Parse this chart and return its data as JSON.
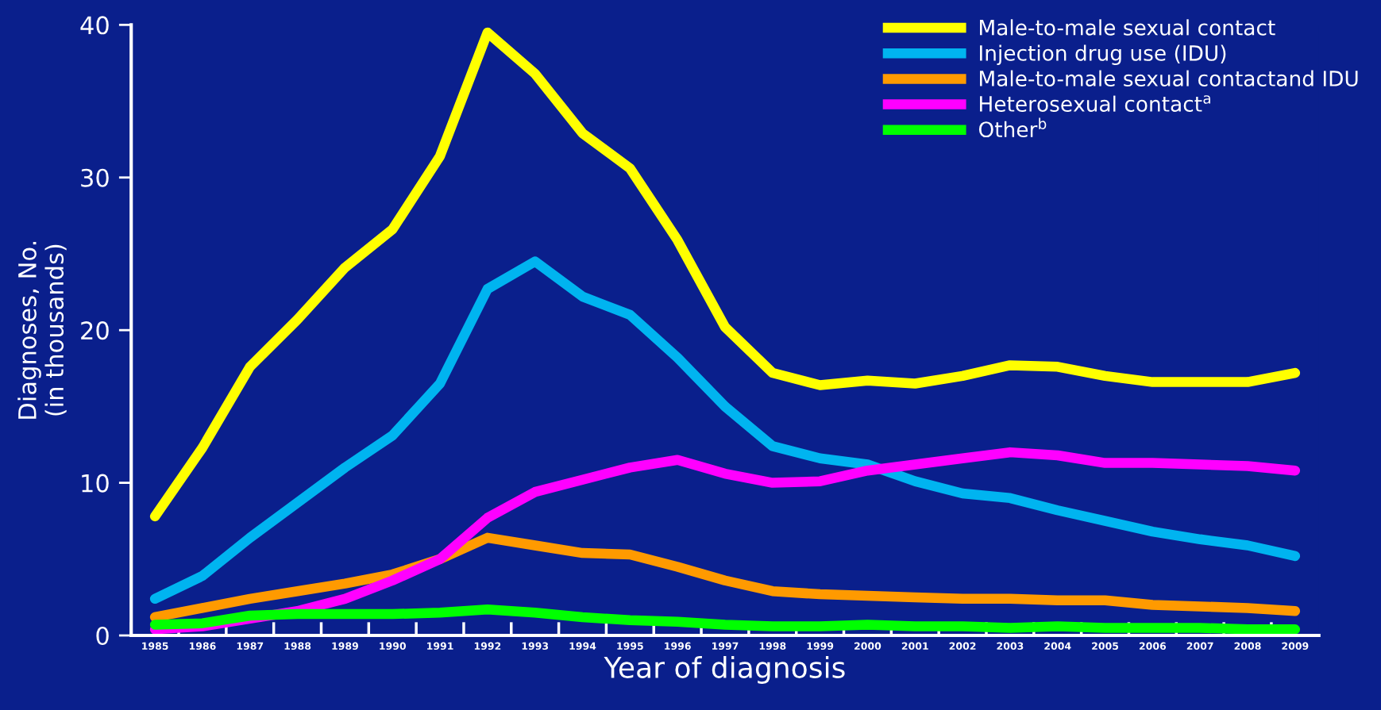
{
  "chart_data": {
    "type": "line",
    "xlabel": "Year of diagnosis",
    "ylabel": "Diagnoses, No.\n(in thousands)",
    "categories": [
      "1985",
      "1986",
      "1987",
      "1988",
      "1989",
      "1990",
      "1991",
      "1992",
      "1993",
      "1994",
      "1995",
      "1996",
      "1997",
      "1998",
      "1999",
      "2000",
      "2001",
      "2002",
      "2003",
      "2004",
      "2005",
      "2006",
      "2007",
      "2008",
      "2009"
    ],
    "series": [
      {
        "name": "Male-to-male sexual contact",
        "color": "#ffff00",
        "values": [
          7.8,
          12.3,
          17.6,
          20.7,
          24.1,
          26.6,
          31.4,
          39.5,
          36.8,
          32.9,
          30.6,
          25.9,
          20.2,
          17.2,
          16.4,
          16.7,
          16.5,
          17.0,
          17.7,
          17.6,
          17.0,
          16.6,
          16.6,
          16.6,
          17.2
        ]
      },
      {
        "name": "Injection drug use (IDU)",
        "color": "#00b4f0",
        "values": [
          2.4,
          3.9,
          6.4,
          8.7,
          11.0,
          13.1,
          16.5,
          22.7,
          24.5,
          22.2,
          21.0,
          18.2,
          15.0,
          12.4,
          11.6,
          11.2,
          10.1,
          9.3,
          9.0,
          8.2,
          7.5,
          6.8,
          6.3,
          5.9,
          5.2
        ]
      },
      {
        "name": "Male-to-male sexual contactand IDU",
        "color": "#ff9a00",
        "values": [
          1.2,
          1.8,
          2.4,
          2.9,
          3.4,
          4.0,
          5.0,
          6.4,
          5.9,
          5.4,
          5.3,
          4.5,
          3.6,
          2.9,
          2.7,
          2.6,
          2.5,
          2.4,
          2.4,
          2.3,
          2.3,
          2.0,
          1.9,
          1.8,
          1.6
        ]
      },
      {
        "name": "Heterosexual contact$^{a}$",
        "color": "#ff00ff",
        "values": [
          0.4,
          0.6,
          1.1,
          1.6,
          2.4,
          3.6,
          5.0,
          7.7,
          9.4,
          10.2,
          11.0,
          11.5,
          10.6,
          10.0,
          10.1,
          10.8,
          11.2,
          11.6,
          12.0,
          11.8,
          11.3,
          11.3,
          11.2,
          11.1,
          10.8
        ]
      },
      {
        "name": "Other$^{b}$",
        "color": "#00ff00",
        "values": [
          0.7,
          0.8,
          1.3,
          1.4,
          1.4,
          1.4,
          1.5,
          1.7,
          1.5,
          1.2,
          1.0,
          0.9,
          0.7,
          0.6,
          0.6,
          0.7,
          0.6,
          0.6,
          0.5,
          0.6,
          0.5,
          0.5,
          0.5,
          0.4,
          0.4
        ]
      }
    ],
    "ylim": [
      0,
      40
    ],
    "yticks": [
      0,
      10,
      20,
      30,
      40
    ],
    "grid": false,
    "legend": "top right",
    "line_style": "solid"
  }
}
